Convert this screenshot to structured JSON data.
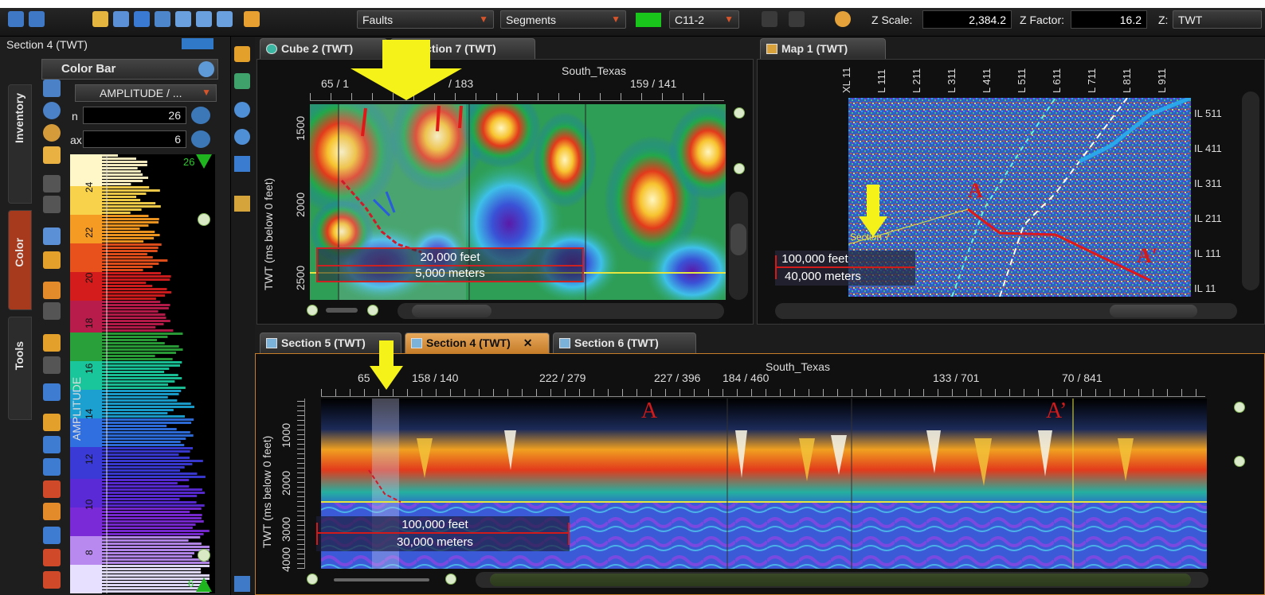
{
  "toolbar": {
    "faults": "Faults",
    "segments": "Segments",
    "horizon": "C11-2",
    "z_scale_label": "Z Scale:",
    "z_scale_value": "2,384.2",
    "z_factor_label": "Z Factor:",
    "z_factor_value": "16.2",
    "z_domain_label": "Z:",
    "z_domain_value": "TWT",
    "horizon_color": "#19c51b"
  },
  "left_panel": {
    "title": "Section 4 (TWT)",
    "side_tabs": [
      "Inventory",
      "Color",
      "Tools"
    ],
    "color_bar_title": "Color Bar",
    "attribute": "AMPLITUDE / ...",
    "min_label": "n",
    "min_value": "26",
    "max_label": "ax",
    "max_value": "6",
    "scale_top": "26",
    "scale_bottom": "6",
    "axis_label": "AMPLITUDE",
    "ticks": [
      "24",
      "22",
      "20",
      "18",
      "16",
      "14",
      "12",
      "10",
      "8"
    ]
  },
  "upper_section": {
    "tabs": [
      "Cube 2 (TWT)",
      "Section 7 (TWT)"
    ],
    "survey": "South_Texas",
    "trace_labels": [
      "65 / 1",
      "/ 183",
      "159 / 141"
    ],
    "y_label": "TWT (ms below 0 feet)",
    "y_ticks": [
      "1500",
      "2000",
      "2500"
    ],
    "scale_feet": "20,000 feet",
    "scale_meters": "5,000 meters"
  },
  "map": {
    "tab": "Map 1 (TWT)",
    "xl_labels": [
      "XL 11",
      "L 111",
      "L 211",
      "L 311",
      "L 411",
      "L 511",
      "L 611",
      "L 711",
      "L 811",
      "L 911"
    ],
    "il_labels": [
      "IL 511",
      "IL 411",
      "IL 311",
      "IL 211",
      "IL 111",
      "IL 11"
    ],
    "label_a": "A",
    "label_a_prime": "A'",
    "section_label": "Section 7",
    "scale_feet": "100,000 feet",
    "scale_meters": "40,000 meters"
  },
  "lower_section": {
    "tabs": [
      "Section 5 (TWT)",
      "Section 4 (TWT)",
      "Section 6 (TWT)"
    ],
    "survey": "South_Texas",
    "trace_labels": [
      "65",
      "158 / 140",
      "222 / 279",
      "227 / 396",
      "184 / 460",
      "133 / 701",
      "70 / 841"
    ],
    "y_label": "TWT (ms below 0 feet)",
    "y_ticks": [
      "1000",
      "2000",
      "3000",
      "4000"
    ],
    "label_a": "A",
    "label_a_prime": "A’",
    "scale_feet": "100,000 feet",
    "scale_meters": "30,000 meters"
  }
}
